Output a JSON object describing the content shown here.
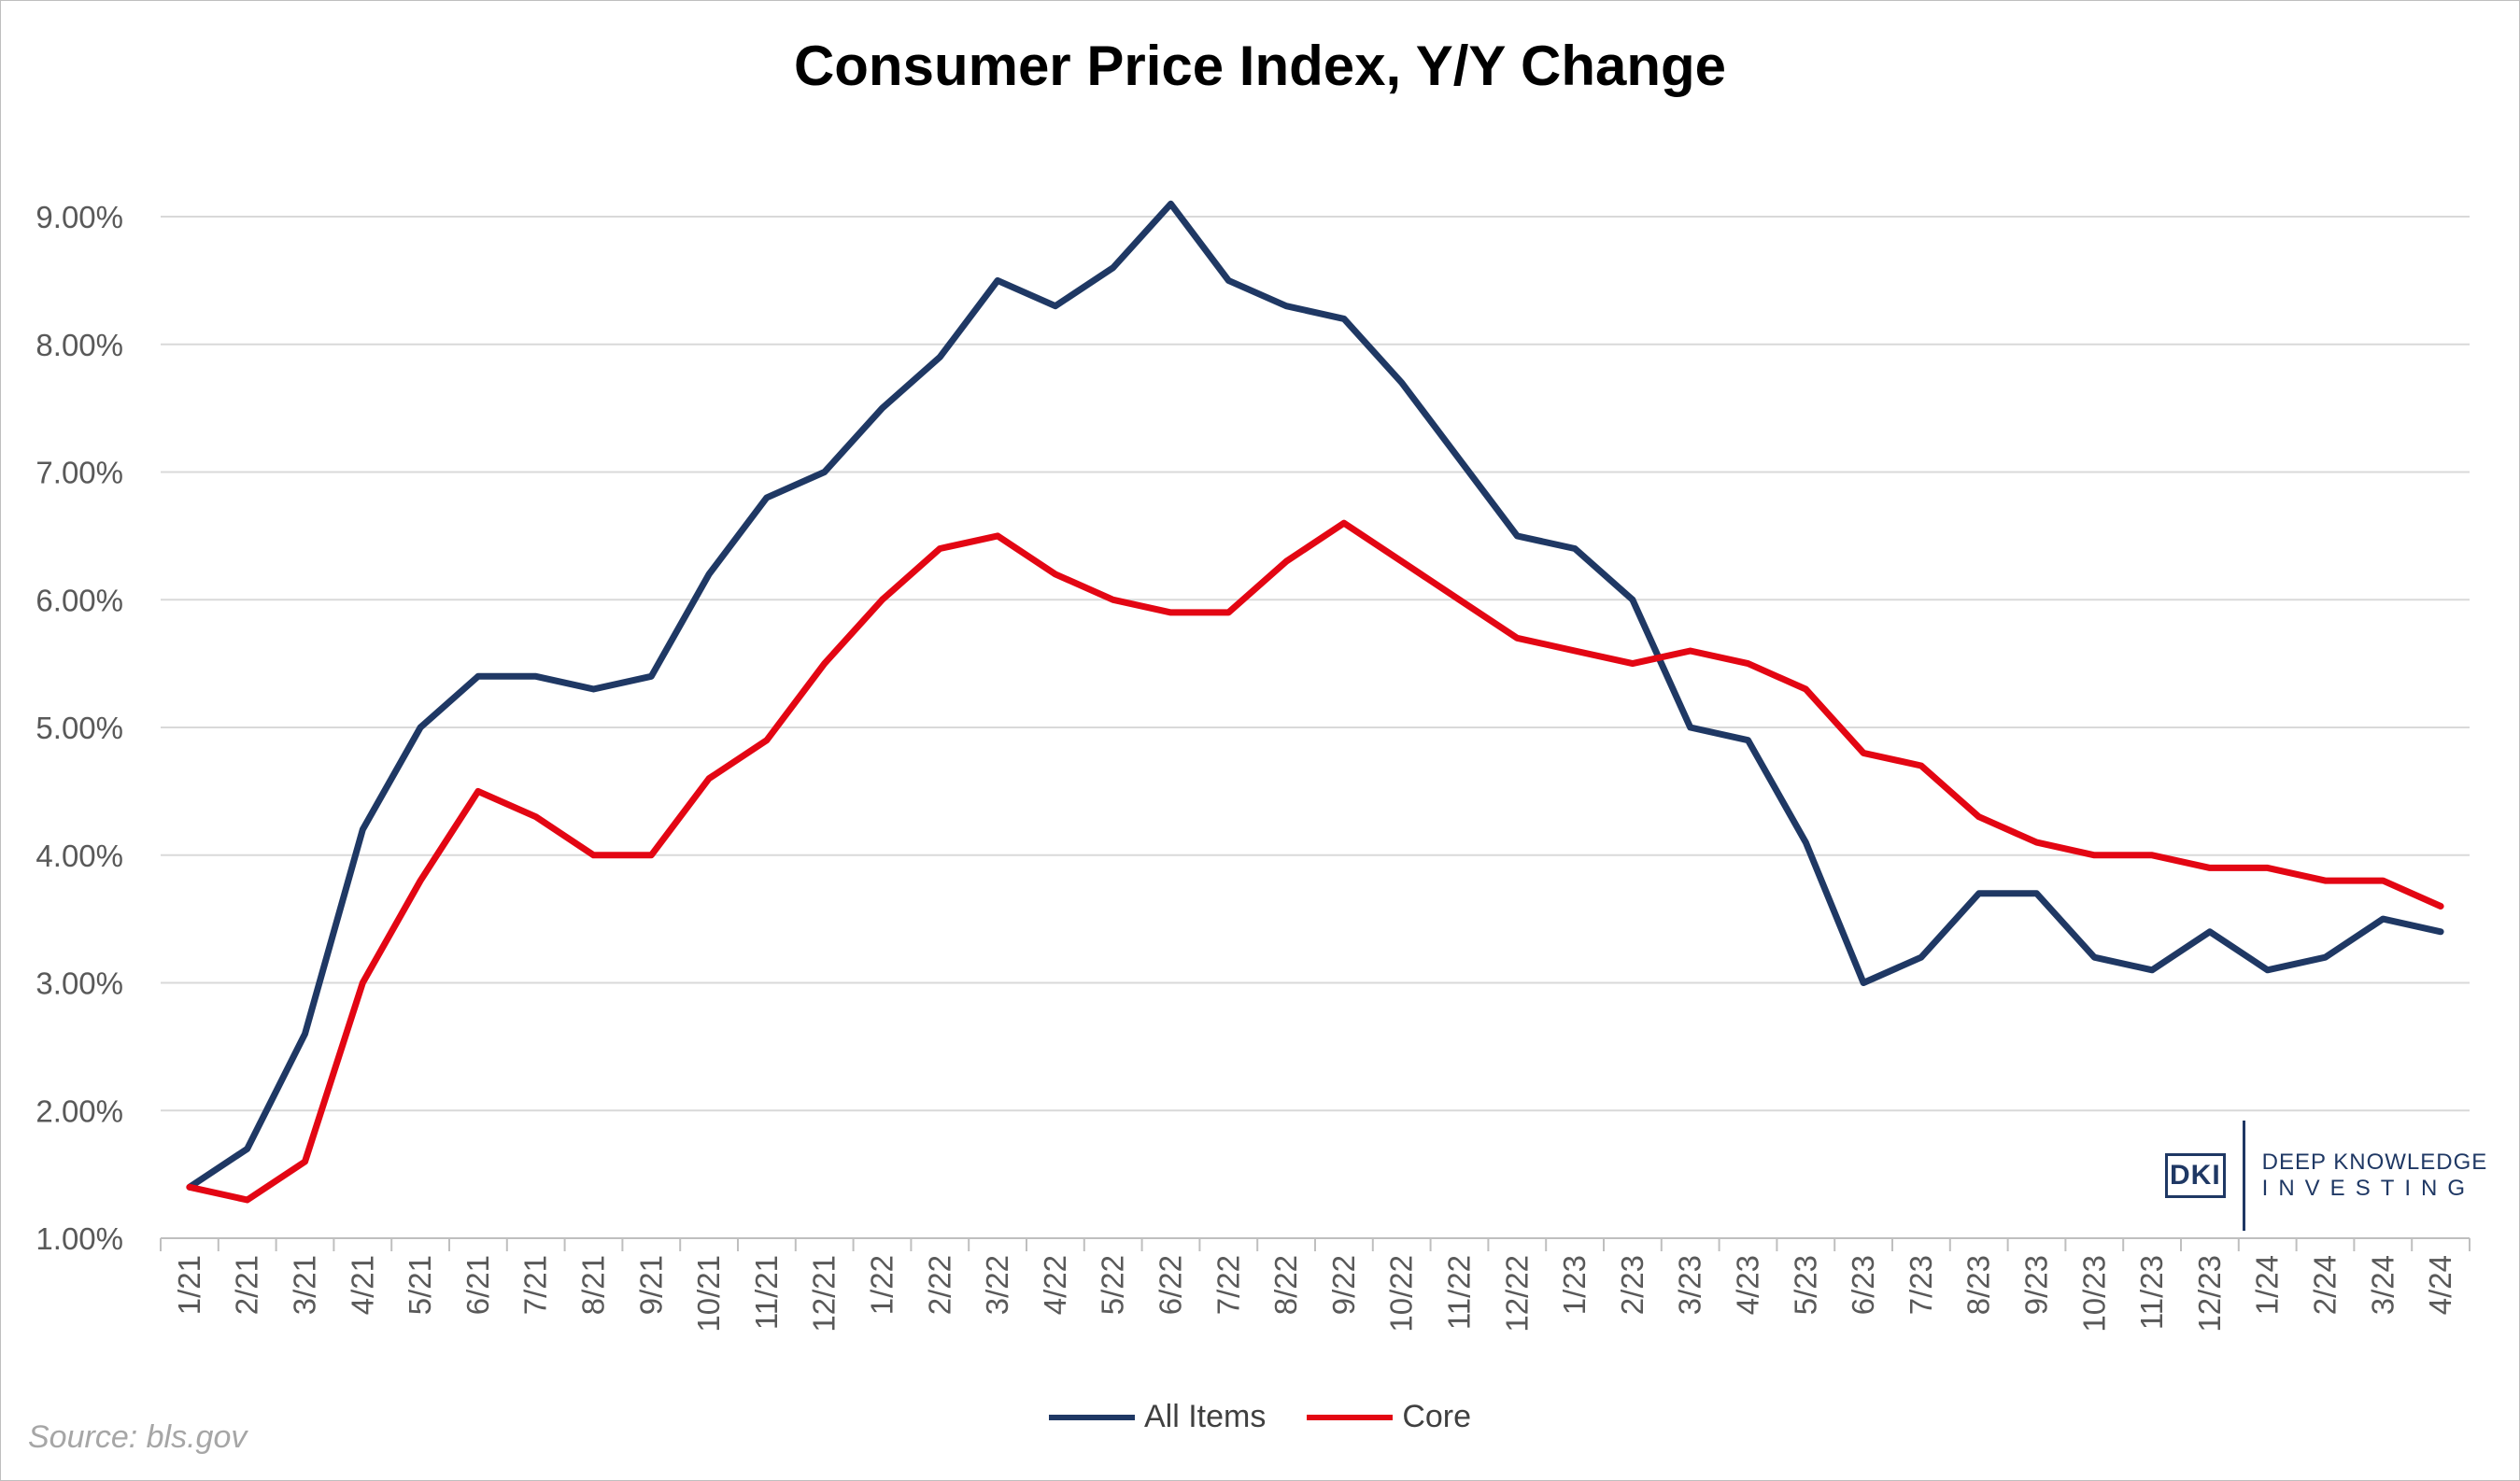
{
  "chart_data": {
    "type": "line",
    "title": "Consumer Price Index, Y/Y Change",
    "categories": [
      "1/21",
      "2/21",
      "3/21",
      "4/21",
      "5/21",
      "6/21",
      "7/21",
      "8/21",
      "9/21",
      "10/21",
      "11/21",
      "12/21",
      "1/22",
      "2/22",
      "3/22",
      "4/22",
      "5/22",
      "6/22",
      "7/22",
      "8/22",
      "9/22",
      "10/22",
      "11/22",
      "12/22",
      "1/23",
      "2/23",
      "3/23",
      "4/23",
      "5/23",
      "6/23",
      "7/23",
      "8/23",
      "9/23",
      "10/23",
      "11/23",
      "12/23",
      "1/24",
      "2/24",
      "3/24",
      "4/24"
    ],
    "series": [
      {
        "name": "All Items",
        "color": "#1f3864",
        "values": [
          1.4,
          1.7,
          2.6,
          4.2,
          5.0,
          5.4,
          5.4,
          5.3,
          5.4,
          6.2,
          6.8,
          7.0,
          7.5,
          7.9,
          8.5,
          8.3,
          8.6,
          9.1,
          8.5,
          8.3,
          8.2,
          7.7,
          7.1,
          6.5,
          6.4,
          6.0,
          5.0,
          4.9,
          4.1,
          3.0,
          3.2,
          3.7,
          3.7,
          3.2,
          3.1,
          3.4,
          3.1,
          3.2,
          3.5,
          3.4
        ]
      },
      {
        "name": "Core",
        "color": "#e30613",
        "values": [
          1.4,
          1.3,
          1.6,
          3.0,
          3.8,
          4.5,
          4.3,
          4.0,
          4.0,
          4.6,
          4.9,
          5.5,
          6.0,
          6.4,
          6.5,
          6.2,
          6.0,
          5.9,
          5.9,
          6.3,
          6.6,
          6.3,
          6.0,
          5.7,
          5.6,
          5.5,
          5.6,
          5.5,
          5.3,
          4.8,
          4.7,
          4.3,
          4.1,
          4.0,
          4.0,
          3.9,
          3.9,
          3.8,
          3.8,
          3.6
        ]
      }
    ],
    "yticks": [
      "1.00%",
      "2.00%",
      "3.00%",
      "4.00%",
      "5.00%",
      "6.00%",
      "7.00%",
      "8.00%",
      "9.00%"
    ],
    "ylim": [
      1,
      9
    ],
    "grid": true,
    "legend_position": "bottom-center"
  },
  "source": "Source: bls.gov",
  "logo": {
    "mark": "DKI",
    "line1": "DEEP KNOWLEDGE",
    "line2": "INVESTING"
  }
}
